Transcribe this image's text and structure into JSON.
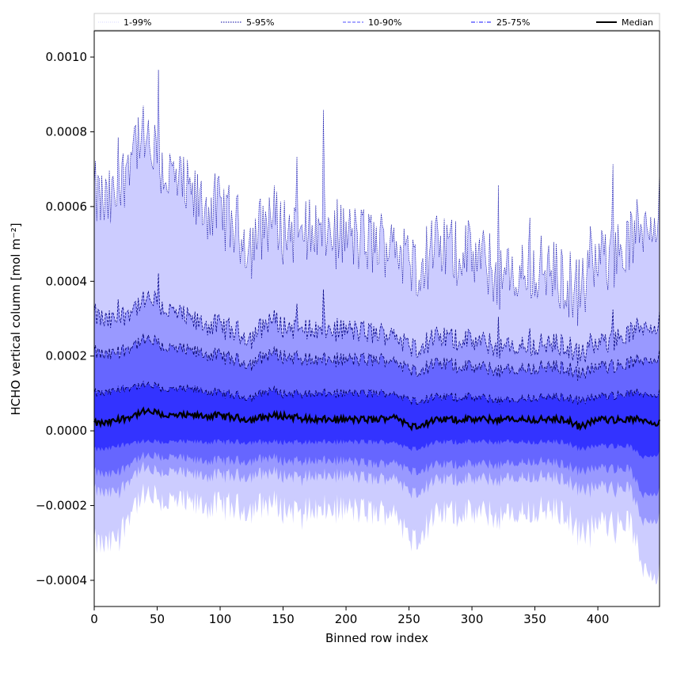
{
  "chart_data": {
    "type": "area",
    "xlabel": "Binned row index",
    "ylabel": "HCHO vertical column [mol m⁻²]",
    "xlim": [
      0,
      449
    ],
    "ylim": [
      -0.00047,
      0.00107
    ],
    "x_ticks": [
      0,
      50,
      100,
      150,
      200,
      250,
      300,
      350,
      400
    ],
    "y_ticks": [
      -0.0004,
      -0.0002,
      0.0,
      0.0002,
      0.0004,
      0.0006,
      0.0008,
      0.001
    ],
    "y_tick_labels": [
      "−0.0004",
      "−0.0002",
      "0.0000",
      "0.0002",
      "0.0004",
      "0.0006",
      "0.0008",
      "0.0010"
    ],
    "legend_position": "top (above plot)",
    "legend": [
      {
        "label": "1-99%",
        "style": "dotted-thin",
        "color": "#c8c8ff"
      },
      {
        "label": "5-95%",
        "style": "dotted",
        "color": "#0000a0"
      },
      {
        "label": "10-90%",
        "style": "dashed",
        "color": "#7070ff"
      },
      {
        "label": "25-75%",
        "style": "dashdot",
        "color": "#4040ff"
      },
      {
        "label": "Median",
        "style": "solid",
        "color": "#000000"
      }
    ],
    "band_colors": {
      "p1_99": "#ccccff",
      "p5_95": "#9999ff",
      "p10_90": "#6666ff",
      "p25_75": "#3333ff",
      "median": "#000000"
    },
    "x_keypoints": [
      0,
      10,
      20,
      30,
      38,
      45,
      60,
      80,
      100,
      125,
      140,
      150,
      175,
      200,
      225,
      240,
      250,
      275,
      300,
      330,
      350,
      375,
      386,
      400,
      425,
      435,
      449
    ],
    "series": [
      {
        "name": "p99",
        "values": [
          0.00063,
          0.0006,
          0.00063,
          0.00078,
          0.00078,
          0.00074,
          0.00068,
          0.00061,
          0.00059,
          0.0005,
          0.00058,
          0.00054,
          0.00054,
          0.00052,
          0.0005,
          0.00051,
          0.00044,
          0.00049,
          0.00047,
          0.0004,
          0.00044,
          0.0004,
          0.00037,
          0.00045,
          0.0005,
          0.00055,
          0.0006
        ]
      },
      {
        "name": "p95",
        "values": [
          0.00031,
          0.00029,
          0.0003,
          0.00033,
          0.00034,
          0.00035,
          0.00032,
          0.00029,
          0.00028,
          0.00025,
          0.0003,
          0.00028,
          0.00027,
          0.00027,
          0.00026,
          0.00026,
          0.00022,
          0.00025,
          0.00024,
          0.00022,
          0.00023,
          0.00023,
          0.0002,
          0.00023,
          0.00026,
          0.00028,
          0.00029
        ]
      },
      {
        "name": "p90",
        "values": [
          0.00021,
          0.0002,
          0.00021,
          0.00023,
          0.00024,
          0.00024,
          0.00022,
          0.00021,
          0.0002,
          0.00018,
          0.00021,
          0.0002,
          0.00019,
          0.00019,
          0.00019,
          0.00019,
          0.00016,
          0.00018,
          0.00017,
          0.00016,
          0.00017,
          0.00017,
          0.00015,
          0.00017,
          0.00018,
          0.00019,
          0.0002
        ]
      },
      {
        "name": "p75",
        "values": [
          0.0001,
          0.0001,
          0.00011,
          0.00012,
          0.00012,
          0.00012,
          0.00011,
          0.00011,
          0.0001,
          9e-05,
          0.00011,
          0.0001,
          0.0001,
          0.0001,
          0.0001,
          0.0001,
          8e-05,
          9e-05,
          9e-05,
          8e-05,
          9e-05,
          9e-05,
          8e-05,
          9e-05,
          0.0001,
          0.0001,
          0.0001
        ]
      },
      {
        "name": "median",
        "values": [
          2e-05,
          2e-05,
          3e-05,
          4e-05,
          5e-05,
          5e-05,
          4e-05,
          4e-05,
          4e-05,
          3e-05,
          4e-05,
          4e-05,
          3e-05,
          3e-05,
          3e-05,
          4e-05,
          1e-05,
          3e-05,
          3e-05,
          3e-05,
          3e-05,
          3e-05,
          1e-05,
          3e-05,
          3e-05,
          3e-05,
          2e-05
        ]
      },
      {
        "name": "p25",
        "values": [
          -5e-05,
          -5e-05,
          -4e-05,
          -3e-05,
          -3e-05,
          -3e-05,
          -3e-05,
          -3e-05,
          -3e-05,
          -3e-05,
          -3e-05,
          -3e-05,
          -3e-05,
          -3e-05,
          -3e-05,
          -3e-05,
          -5e-05,
          -3e-05,
          -3e-05,
          -3e-05,
          -3e-05,
          -3e-05,
          -5e-05,
          -4e-05,
          -4e-05,
          -7e-05,
          -6e-05
        ]
      },
      {
        "name": "p10",
        "values": [
          -0.00011,
          -0.00012,
          -0.00011,
          -8e-05,
          -7e-05,
          -7e-05,
          -7e-05,
          -8e-05,
          -8e-05,
          -8e-05,
          -7e-05,
          -8e-05,
          -8e-05,
          -8e-05,
          -9e-05,
          -8e-05,
          -0.00011,
          -9e-05,
          -9e-05,
          -9e-05,
          -8e-05,
          -9e-05,
          -0.00011,
          -0.0001,
          -0.0001,
          -0.00017,
          -0.00016
        ]
      },
      {
        "name": "p5",
        "values": [
          -0.00016,
          -0.00017,
          -0.00016,
          -0.00012,
          -0.0001,
          -0.00011,
          -0.00011,
          -0.00012,
          -0.00012,
          -0.00012,
          -0.00011,
          -0.00012,
          -0.00012,
          -0.00012,
          -0.00013,
          -0.00012,
          -0.00017,
          -0.00013,
          -0.00013,
          -0.00013,
          -0.00012,
          -0.00013,
          -0.00016,
          -0.00015,
          -0.00015,
          -0.00024,
          -0.00023
        ]
      },
      {
        "name": "p1",
        "values": [
          -0.0003,
          -0.00031,
          -0.00028,
          -0.0002,
          -0.00018,
          -0.00018,
          -0.00019,
          -0.0002,
          -0.0002,
          -0.00021,
          -0.00019,
          -0.00021,
          -0.00021,
          -0.00021,
          -0.00022,
          -0.00021,
          -0.0003,
          -0.00022,
          -0.00022,
          -0.00023,
          -0.00021,
          -0.00022,
          -0.00028,
          -0.00025,
          -0.00024,
          -0.00036,
          -0.00038
        ]
      }
    ]
  }
}
